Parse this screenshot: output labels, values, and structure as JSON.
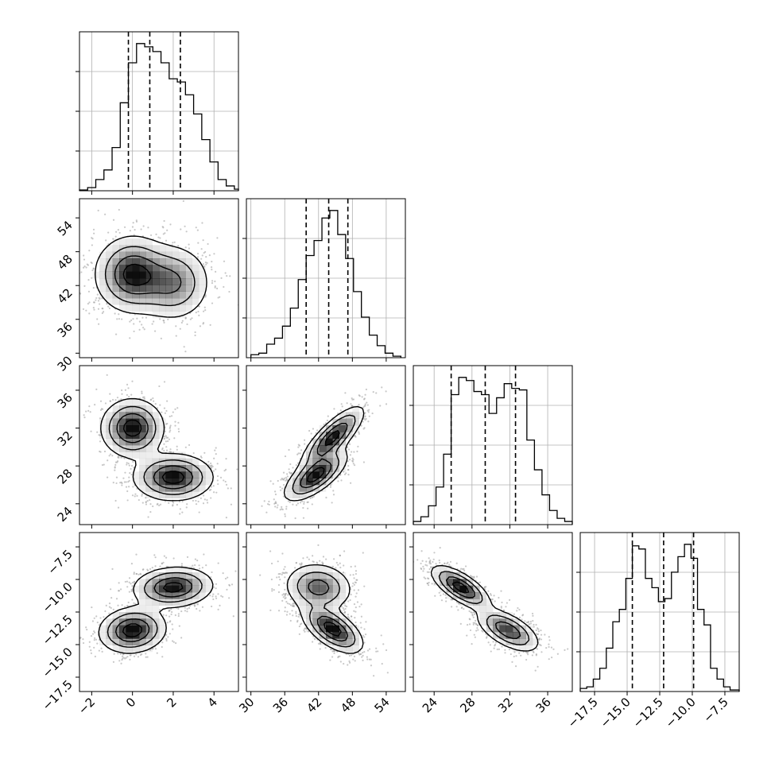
{
  "chart_data": {
    "type": "corner",
    "title": "",
    "parameters": [
      {
        "range": [
          -2.6,
          5.2
        ],
        "ticks": [
          -2,
          0,
          2,
          4
        ],
        "tick_labels": [
          "−2",
          "0",
          "2",
          "4"
        ],
        "quantiles": [
          -0.2,
          0.85,
          2.35
        ],
        "hist_bins": [
          -2.6,
          -2.2,
          -1.8,
          -1.4,
          -1.0,
          -0.6,
          -0.2,
          0.2,
          0.6,
          1.0,
          1.4,
          1.8,
          2.2,
          2.6,
          3.0,
          3.4,
          3.8,
          4.2,
          4.6,
          5.0,
          5.2
        ],
        "hist_counts": [
          0.5,
          2,
          7,
          13,
          27,
          55,
          80,
          92,
          90,
          87,
          80,
          70,
          68,
          60,
          48,
          32,
          18,
          7,
          3,
          1
        ]
      },
      {
        "range": [
          29.2,
          57.4
        ],
        "ticks": [
          30,
          36,
          42,
          48,
          54
        ],
        "tick_labels": [
          "30",
          "36",
          "42",
          "48",
          "54"
        ],
        "quantiles": [
          39.8,
          43.8,
          47.2
        ],
        "hist_bins": [
          30.0,
          31.4,
          32.8,
          34.2,
          35.6,
          37.0,
          38.4,
          39.8,
          41.2,
          42.6,
          44.0,
          45.4,
          46.8,
          48.2,
          49.6,
          51.0,
          52.4,
          53.8,
          55.2,
          56.6
        ],
        "hist_counts": [
          2,
          3,
          9,
          13,
          21,
          33,
          52,
          68,
          78,
          93,
          98,
          82,
          66,
          44,
          27,
          15,
          8,
          3,
          1
        ]
      },
      {
        "range": [
          21.8,
          38.6
        ],
        "ticks": [
          24,
          28,
          32,
          36
        ],
        "tick_labels": [
          "24",
          "28",
          "32",
          "36"
        ],
        "quantiles": [
          25.8,
          29.4,
          32.6
        ],
        "hist_bins": [
          21.8,
          22.6,
          23.4,
          24.2,
          25.0,
          25.8,
          26.6,
          27.4,
          28.2,
          29.0,
          29.8,
          30.6,
          31.4,
          32.2,
          33.0,
          33.8,
          34.6,
          35.4,
          36.2,
          37.0,
          37.8,
          38.6
        ],
        "hist_counts": [
          2,
          5,
          12,
          24,
          45,
          83,
          94,
          92,
          85,
          83,
          71,
          81,
          90,
          87,
          86,
          54,
          35,
          19,
          9,
          4,
          2
        ]
      },
      {
        "range": [
          -18.6,
          -6.4
        ],
        "ticks": [
          -17.5,
          -15.0,
          -12.5,
          -10.0,
          -7.5
        ],
        "tick_labels": [
          "−17.5",
          "−15.0",
          "−12.5",
          "−10.0",
          "−7.5"
        ],
        "quantiles": [
          -14.6,
          -12.2,
          -9.9
        ],
        "hist_bins": [
          -18.6,
          -18.1,
          -17.6,
          -17.1,
          -16.6,
          -16.1,
          -15.6,
          -15.1,
          -14.6,
          -14.1,
          -13.6,
          -13.1,
          -12.6,
          -12.1,
          -11.6,
          -11.1,
          -10.6,
          -10.1,
          -9.6,
          -9.1,
          -8.6,
          -8.1,
          -7.6,
          -7.1,
          -6.4
        ],
        "hist_counts": [
          2,
          3,
          8,
          15,
          28,
          45,
          53,
          73,
          94,
          92,
          73,
          67,
          58,
          60,
          77,
          87,
          95,
          86,
          53,
          43,
          15,
          8,
          3,
          1
        ]
      }
    ],
    "pairs": [
      {
        "row": 1,
        "col": 0,
        "modes": [
          {
            "mx": 0.0,
            "my": 44.0,
            "sx": 0.9,
            "sy": 3.3,
            "rho": 0.0,
            "w": 0.6
          },
          {
            "mx": 2.0,
            "my": 42.5,
            "sx": 0.9,
            "sy": 3.3,
            "rho": 0.0,
            "w": 0.4
          }
        ]
      },
      {
        "row": 2,
        "col": 0,
        "modes": [
          {
            "mx": 0.0,
            "my": 32.0,
            "sx": 0.75,
            "sy": 1.5,
            "rho": 0.0,
            "w": 0.5
          },
          {
            "mx": 2.0,
            "my": 26.8,
            "sx": 0.95,
            "sy": 1.2,
            "rho": 0.0,
            "w": 0.5
          }
        ]
      },
      {
        "row": 2,
        "col": 1,
        "modes": [
          {
            "mx": 44.5,
            "my": 31.0,
            "sx": 2.7,
            "sy": 1.6,
            "rho": 0.8,
            "w": 0.5
          },
          {
            "mx": 41.5,
            "my": 27.0,
            "sx": 2.7,
            "sy": 1.3,
            "rho": 0.7,
            "w": 0.5
          }
        ]
      },
      {
        "row": 3,
        "col": 0,
        "modes": [
          {
            "mx": 0.0,
            "my": -13.9,
            "sx": 0.8,
            "sy": 0.85,
            "rho": 0.1,
            "w": 0.5
          },
          {
            "mx": 2.0,
            "my": -10.6,
            "sx": 0.95,
            "sy": 0.75,
            "rho": 0.1,
            "w": 0.5
          }
        ]
      },
      {
        "row": 3,
        "col": 1,
        "modes": [
          {
            "mx": 44.5,
            "my": -13.8,
            "sx": 2.6,
            "sy": 0.9,
            "rho": -0.6,
            "w": 0.5
          },
          {
            "mx": 42.0,
            "my": -10.6,
            "sx": 2.9,
            "sy": 0.9,
            "rho": -0.1,
            "w": 0.5
          }
        ]
      },
      {
        "row": 3,
        "col": 2,
        "modes": [
          {
            "mx": 26.8,
            "my": -10.6,
            "sx": 1.5,
            "sy": 0.8,
            "rho": -0.7,
            "w": 0.5
          },
          {
            "mx": 31.8,
            "my": -13.9,
            "sx": 1.6,
            "sy": 0.8,
            "rho": -0.6,
            "w": 0.5
          }
        ]
      }
    ],
    "style": {
      "frame_color": "#000000",
      "grid_color": "#b0b0b0",
      "hist_color": "#000000",
      "scatter_color": "#9a9a9a",
      "contour_color": "#000000",
      "density_color": "#000000",
      "grid": true
    }
  }
}
